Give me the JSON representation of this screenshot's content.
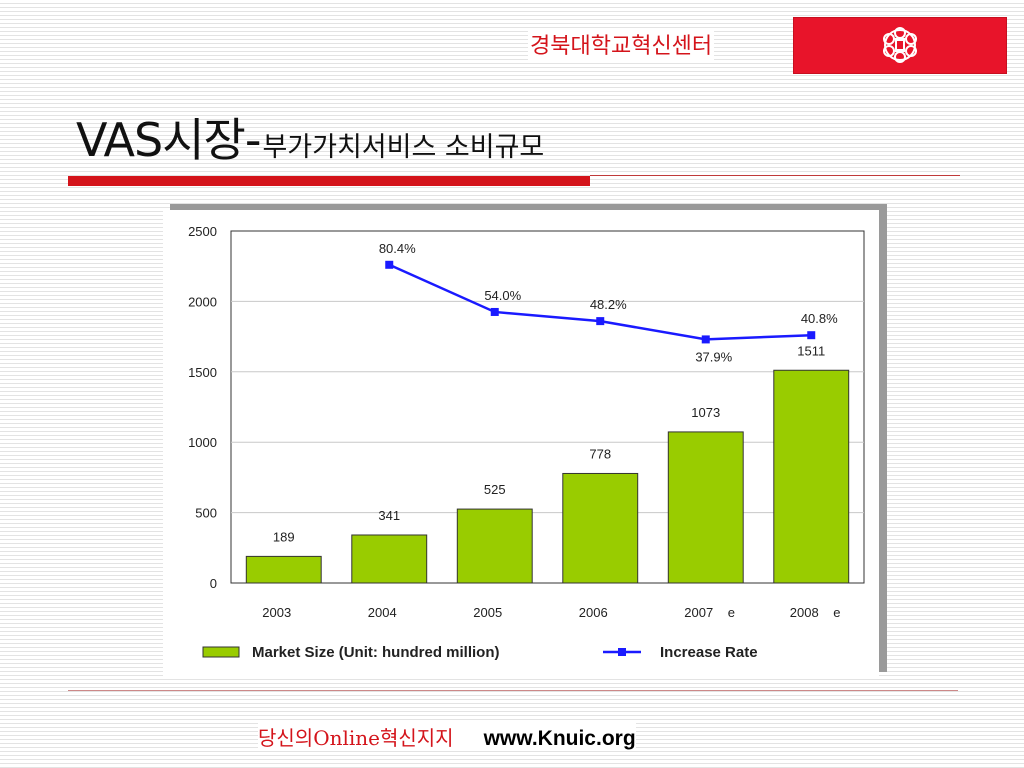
{
  "header": {
    "org_name": "경북대학교혁신센터",
    "logo_icon": "university-emblem-icon",
    "brand_color": "#e8142a"
  },
  "slide": {
    "title_main": "VAS시장-",
    "title_sub": "부가가치서비스 소비규모"
  },
  "chart_data": {
    "type": "bar",
    "categories": [
      "2003",
      "2004",
      "2005",
      "2006",
      "2007",
      "2008"
    ],
    "category_suffix": [
      "",
      "",
      "",
      "",
      "e",
      "e"
    ],
    "ylim": [
      0,
      2500
    ],
    "yticks": [
      0,
      500,
      1000,
      1500,
      2000,
      2500
    ],
    "grid": true,
    "legend_position": "bottom",
    "series": [
      {
        "name": "Market Size (Unit: hundred million)",
        "type": "bar",
        "color": "#99cc00",
        "values": [
          189,
          341,
          525,
          778,
          1073,
          1511
        ],
        "labels": [
          "189",
          "341",
          "525",
          "778",
          "1073",
          "1511"
        ]
      },
      {
        "name": "Increase Rate",
        "type": "line",
        "color": "#1a1aff",
        "points": [
          {
            "category": "2004",
            "y": 2260,
            "label": "80.4%"
          },
          {
            "category": "2005",
            "y": 1925,
            "label": "54.0%"
          },
          {
            "category": "2006",
            "y": 1860,
            "label": "48.2%"
          },
          {
            "category": "2007",
            "y": 1730,
            "label": "37.9%"
          },
          {
            "category": "2008",
            "y": 1760,
            "label": "40.8%"
          }
        ]
      }
    ]
  },
  "footer": {
    "slogan": "당신의Online혁신지지",
    "url": "www.Knuic.org"
  }
}
